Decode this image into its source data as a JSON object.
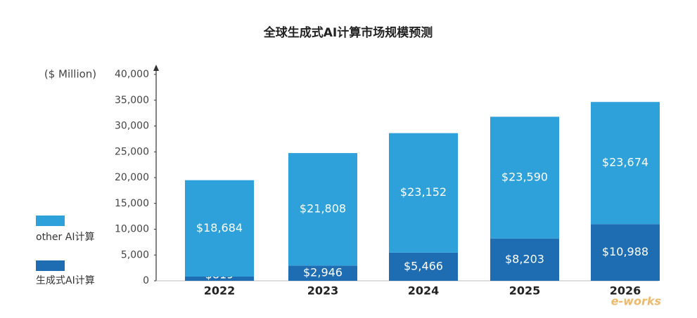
{
  "chart_data": {
    "type": "stacked_bar",
    "title": "全球生成式AI计算市场规模预测",
    "y_label": "($ Million)",
    "categories": [
      "2022",
      "2023",
      "2024",
      "2025",
      "2026"
    ],
    "series": [
      {
        "name": "生成式AI计算",
        "color": "#1e6db3",
        "values": [
          819,
          2946,
          5466,
          8203,
          10988
        ],
        "value_labels": [
          "$819",
          "$2,946",
          "$5,466",
          "$8,203",
          "$10,988"
        ]
      },
      {
        "name": "other AI计算",
        "color": "#2ea1da",
        "values": [
          18684,
          21808,
          23152,
          23590,
          23674
        ],
        "value_labels": [
          "$18,684",
          "$21,808",
          "$23,152",
          "$23,590",
          "$23,674"
        ]
      }
    ],
    "ylim": [
      0,
      40000
    ],
    "yticks": [
      0,
      {
        "value": 5000,
        "label": "5,000"
      },
      {
        "value": 10000,
        "label": "10,000"
      },
      {
        "value": 15000,
        "label": "15,000"
      },
      {
        "value": 20000,
        "label": "20,000"
      },
      {
        "value": 25000,
        "label": "25,000"
      },
      {
        "value": 30000,
        "label": "30,000"
      },
      {
        "value": 35000,
        "label": "35,000"
      },
      {
        "value": 40000,
        "label": "40,000"
      }
    ],
    "watermark": "e-works"
  }
}
